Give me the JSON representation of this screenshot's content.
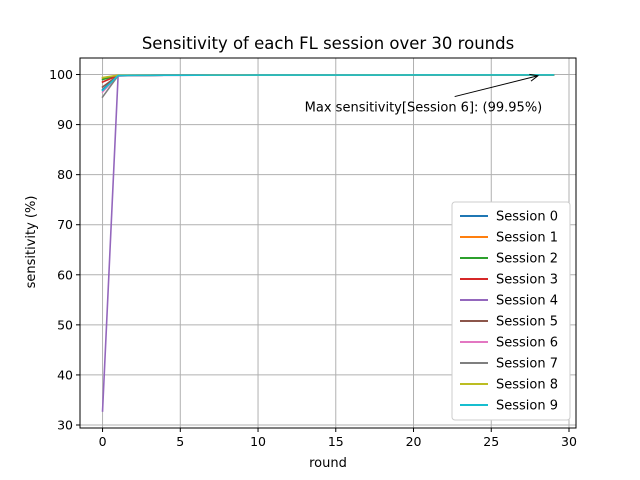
{
  "chart_data": {
    "type": "line",
    "title": "Sensitivity of each FL session over 30 rounds",
    "xlabel": "round",
    "ylabel": "sensitivity (%)",
    "xlim": [
      -1.45,
      30.45
    ],
    "ylim": [
      29.4,
      103.3
    ],
    "xticks": [
      0,
      5,
      10,
      15,
      20,
      25,
      30
    ],
    "yticks": [
      30,
      40,
      50,
      60,
      70,
      80,
      90,
      100
    ],
    "grid": true,
    "legend_placement": "lower-right",
    "x": [
      0,
      1,
      2,
      3,
      4,
      5,
      6,
      7,
      8,
      9,
      10,
      11,
      12,
      13,
      14,
      15,
      16,
      17,
      18,
      19,
      20,
      21,
      22,
      23,
      24,
      25,
      26,
      27,
      28,
      29
    ],
    "series": [
      {
        "name": "Session 0",
        "color": "#1f77b4",
        "values": [
          97.0,
          99.8,
          99.85,
          99.85,
          99.86,
          99.86,
          99.87,
          99.87,
          99.87,
          99.88,
          99.88,
          99.88,
          99.88,
          99.89,
          99.89,
          99.89,
          99.89,
          99.89,
          99.9,
          99.9,
          99.9,
          99.9,
          99.9,
          99.9,
          99.9,
          99.91,
          99.91,
          99.91,
          99.91,
          99.91
        ]
      },
      {
        "name": "Session 1",
        "color": "#ff7f0e",
        "values": [
          99.3,
          99.85,
          99.86,
          99.87,
          99.87,
          99.88,
          99.88,
          99.88,
          99.89,
          99.89,
          99.89,
          99.89,
          99.9,
          99.9,
          99.9,
          99.9,
          99.9,
          99.9,
          99.9,
          99.91,
          99.91,
          99.91,
          99.91,
          99.91,
          99.91,
          99.91,
          99.92,
          99.92,
          99.92,
          99.92
        ]
      },
      {
        "name": "Session 2",
        "color": "#2ca02c",
        "values": [
          99.0,
          99.83,
          99.85,
          99.86,
          99.86,
          99.87,
          99.87,
          99.88,
          99.88,
          99.88,
          99.89,
          99.89,
          99.89,
          99.89,
          99.9,
          99.9,
          99.9,
          99.9,
          99.9,
          99.9,
          99.91,
          99.91,
          99.91,
          99.91,
          99.91,
          99.91,
          99.91,
          99.92,
          99.92,
          99.92
        ]
      },
      {
        "name": "Session 3",
        "color": "#d62728",
        "values": [
          98.5,
          99.82,
          99.84,
          99.85,
          99.86,
          99.86,
          99.87,
          99.87,
          99.88,
          99.88,
          99.88,
          99.88,
          99.89,
          99.89,
          99.89,
          99.89,
          99.9,
          99.9,
          99.9,
          99.9,
          99.9,
          99.9,
          99.91,
          99.91,
          99.91,
          99.91,
          99.91,
          99.91,
          99.91,
          99.92
        ]
      },
      {
        "name": "Session 4",
        "color": "#9467bd",
        "values": [
          32.8,
          99.7,
          99.8,
          99.82,
          99.84,
          99.85,
          99.86,
          99.86,
          99.87,
          99.87,
          99.88,
          99.88,
          99.88,
          99.89,
          99.89,
          99.89,
          99.89,
          99.9,
          99.9,
          99.9,
          99.9,
          99.9,
          99.9,
          99.91,
          99.91,
          99.91,
          99.91,
          99.91,
          99.91,
          99.91
        ]
      },
      {
        "name": "Session 5",
        "color": "#8c564b",
        "values": [
          97.5,
          99.8,
          99.84,
          99.85,
          99.86,
          99.87,
          99.87,
          99.88,
          99.88,
          99.88,
          99.89,
          99.89,
          99.89,
          99.89,
          99.9,
          99.9,
          99.9,
          99.9,
          99.9,
          99.9,
          99.91,
          99.91,
          99.91,
          99.91,
          99.91,
          99.91,
          99.92,
          99.92,
          99.92,
          99.92
        ]
      },
      {
        "name": "Session 6",
        "color": "#e377c2",
        "values": [
          96.5,
          99.8,
          99.85,
          99.86,
          99.87,
          99.87,
          99.88,
          99.88,
          99.89,
          99.89,
          99.89,
          99.9,
          99.9,
          99.9,
          99.9,
          99.91,
          99.91,
          99.91,
          99.91,
          99.92,
          99.92,
          99.92,
          99.92,
          99.93,
          99.93,
          99.93,
          99.94,
          99.94,
          99.95,
          99.95
        ]
      },
      {
        "name": "Session 7",
        "color": "#7f7f7f",
        "values": [
          95.5,
          99.78,
          99.83,
          99.85,
          99.86,
          99.86,
          99.87,
          99.87,
          99.88,
          99.88,
          99.88,
          99.89,
          99.89,
          99.89,
          99.89,
          99.9,
          99.9,
          99.9,
          99.9,
          99.9,
          99.9,
          99.91,
          99.91,
          99.91,
          99.91,
          99.91,
          99.91,
          99.91,
          99.92,
          99.92
        ]
      },
      {
        "name": "Session 8",
        "color": "#bcbd22",
        "values": [
          99.4,
          99.86,
          99.87,
          99.87,
          99.88,
          99.88,
          99.88,
          99.89,
          99.89,
          99.89,
          99.89,
          99.9,
          99.9,
          99.9,
          99.9,
          99.9,
          99.9,
          99.91,
          99.91,
          99.91,
          99.91,
          99.91,
          99.91,
          99.91,
          99.92,
          99.92,
          99.92,
          99.92,
          99.92,
          99.92
        ]
      },
      {
        "name": "Session 9",
        "color": "#17becf",
        "values": [
          96.8,
          99.8,
          99.84,
          99.85,
          99.86,
          99.87,
          99.87,
          99.88,
          99.88,
          99.88,
          99.89,
          99.89,
          99.89,
          99.89,
          99.9,
          99.9,
          99.9,
          99.9,
          99.9,
          99.9,
          99.91,
          99.91,
          99.91,
          99.91,
          99.91,
          99.91,
          99.91,
          99.92,
          99.92,
          99.92
        ]
      }
    ],
    "annotations": [
      {
        "text": "Max sensitivity[Session 6]: (99.95%)",
        "point": [
          28,
          99.95
        ],
        "text_at": [
          13.0,
          93.6
        ]
      }
    ]
  }
}
